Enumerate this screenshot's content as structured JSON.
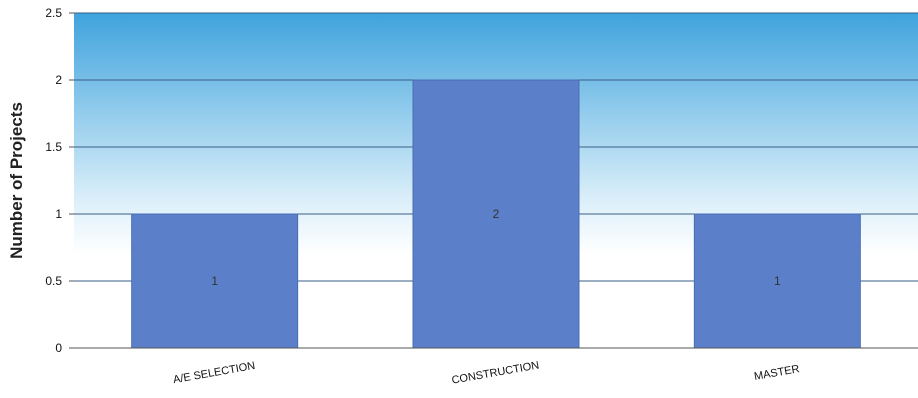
{
  "chart_data": {
    "type": "bar",
    "title": "",
    "xlabel": "",
    "ylabel": "Number of Projects",
    "categories": [
      "A/E SELECTION",
      "CONSTRUCTION",
      "MASTER"
    ],
    "values": [
      1,
      2,
      1
    ],
    "data_labels": [
      "1",
      "2",
      "1"
    ],
    "yticks": [
      "0",
      "0.5",
      "1",
      "1.5",
      "2",
      "2.5"
    ],
    "ylim": [
      0,
      2.5
    ],
    "grid": true,
    "legend": "none",
    "colors": {
      "bar": "#5b7fc9",
      "bar_edge": "#4a6db3",
      "plot_bg_top": "#3fa3dd",
      "plot_bg_bottom": "#ffffff",
      "gridline": "#3a5f86"
    }
  }
}
